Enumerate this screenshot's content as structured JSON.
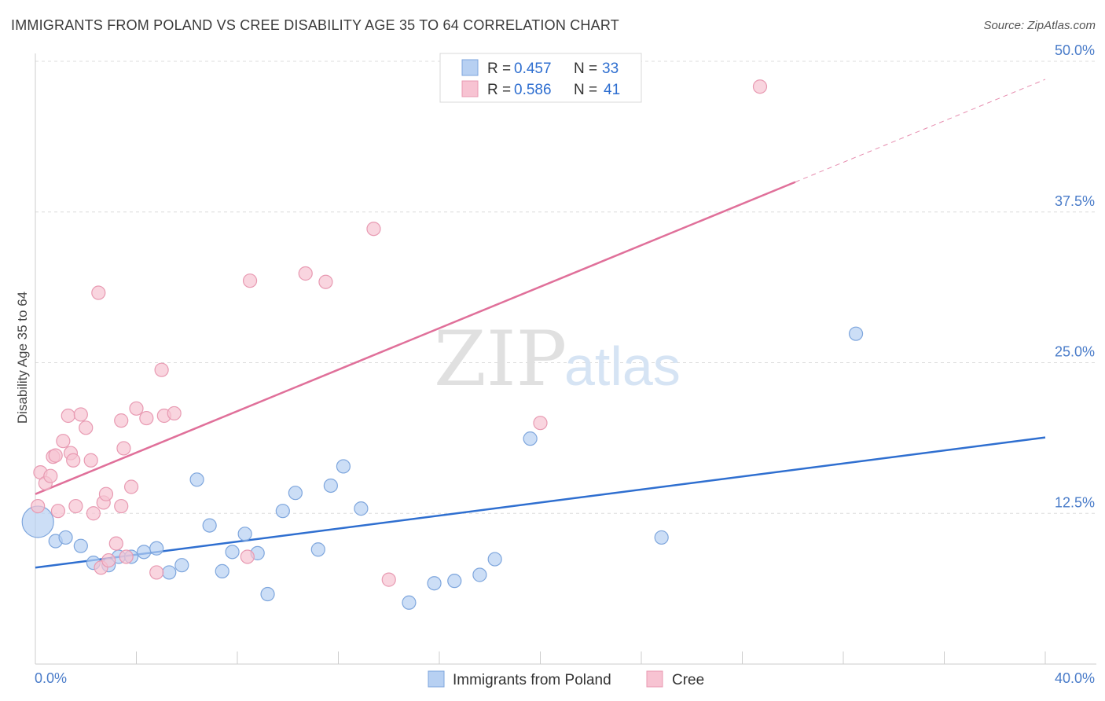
{
  "header": {
    "title": "IMMIGRANTS FROM POLAND VS CREE DISABILITY AGE 35 TO 64 CORRELATION CHART",
    "source": "Source: ZipAtlas.com"
  },
  "watermark": {
    "zip": "ZIP",
    "atlas": "atlas"
  },
  "colors": {
    "blue_fill": "#b7d0f2",
    "blue_stroke": "#7ea6dd",
    "blue_line": "#2f6fd0",
    "pink_fill": "#f7c3d2",
    "pink_stroke": "#e89ab2",
    "pink_line": "#e0709a",
    "grid": "#dcdcdc",
    "axis": "#cccccc"
  },
  "legend": {
    "entries": [
      {
        "r_label": "R = ",
        "r_value": "0.457",
        "n_label": "N = ",
        "n_value": "33"
      },
      {
        "r_label": "R = ",
        "r_value": "0.586",
        "n_label": "N = ",
        "n_value": "41"
      }
    ]
  },
  "chart_data": {
    "type": "scatter",
    "title": "IMMIGRANTS FROM POLAND VS CREE DISABILITY AGE 35 TO 64 CORRELATION CHART",
    "xlabel": "",
    "ylabel": "Disability Age 35 to 64",
    "xlim": [
      0,
      40
    ],
    "ylim": [
      0,
      50
    ],
    "x_tick_labels": [
      "0.0%",
      "40.0%"
    ],
    "y_ticks": [
      12.5,
      25.0,
      37.5,
      50.0
    ],
    "y_tick_labels": [
      "12.5%",
      "25.0%",
      "37.5%",
      "50.0%"
    ],
    "grid": true,
    "legend_position": "top-center",
    "series": [
      {
        "name": "Immigrants from Poland",
        "color": "#b7d0f2",
        "trend": {
          "x": [
            0,
            40
          ],
          "y": [
            8.0,
            18.8
          ],
          "solid_to": 40
        },
        "points": [
          {
            "x": 0.1,
            "y": 11.8,
            "big": true
          },
          {
            "x": 0.8,
            "y": 10.2
          },
          {
            "x": 1.2,
            "y": 10.5
          },
          {
            "x": 1.8,
            "y": 9.8
          },
          {
            "x": 2.3,
            "y": 8.4
          },
          {
            "x": 2.9,
            "y": 8.2
          },
          {
            "x": 3.3,
            "y": 8.9
          },
          {
            "x": 3.8,
            "y": 8.9
          },
          {
            "x": 4.3,
            "y": 9.3
          },
          {
            "x": 4.8,
            "y": 9.6
          },
          {
            "x": 5.3,
            "y": 7.6
          },
          {
            "x": 5.8,
            "y": 8.2
          },
          {
            "x": 6.4,
            "y": 15.3
          },
          {
            "x": 6.9,
            "y": 11.5
          },
          {
            "x": 7.4,
            "y": 7.7
          },
          {
            "x": 7.8,
            "y": 9.3
          },
          {
            "x": 8.3,
            "y": 10.8
          },
          {
            "x": 8.8,
            "y": 9.2
          },
          {
            "x": 9.2,
            "y": 5.8
          },
          {
            "x": 9.8,
            "y": 12.7
          },
          {
            "x": 10.3,
            "y": 14.2
          },
          {
            "x": 11.2,
            "y": 9.5
          },
          {
            "x": 11.7,
            "y": 14.8
          },
          {
            "x": 12.2,
            "y": 16.4
          },
          {
            "x": 12.9,
            "y": 12.9
          },
          {
            "x": 14.8,
            "y": 5.1
          },
          {
            "x": 15.8,
            "y": 6.7
          },
          {
            "x": 16.6,
            "y": 6.9
          },
          {
            "x": 17.6,
            "y": 7.4
          },
          {
            "x": 18.2,
            "y": 8.7
          },
          {
            "x": 19.6,
            "y": 18.7
          },
          {
            "x": 24.8,
            "y": 10.5
          },
          {
            "x": 32.5,
            "y": 27.4
          }
        ]
      },
      {
        "name": "Cree",
        "color": "#f7c3d2",
        "trend": {
          "x": [
            0,
            40
          ],
          "y": [
            14.1,
            48.5
          ],
          "solid_to": 30.1
        },
        "points": [
          {
            "x": 0.1,
            "y": 13.1
          },
          {
            "x": 0.2,
            "y": 15.9
          },
          {
            "x": 0.4,
            "y": 15.0
          },
          {
            "x": 0.6,
            "y": 15.6
          },
          {
            "x": 0.7,
            "y": 17.2
          },
          {
            "x": 0.8,
            "y": 17.3
          },
          {
            "x": 0.9,
            "y": 12.7
          },
          {
            "x": 1.1,
            "y": 18.5
          },
          {
            "x": 1.3,
            "y": 20.6
          },
          {
            "x": 1.4,
            "y": 17.5
          },
          {
            "x": 1.5,
            "y": 16.9
          },
          {
            "x": 1.6,
            "y": 13.1
          },
          {
            "x": 1.8,
            "y": 20.7
          },
          {
            "x": 2.0,
            "y": 19.6
          },
          {
            "x": 2.2,
            "y": 16.9
          },
          {
            "x": 2.3,
            "y": 12.5
          },
          {
            "x": 2.5,
            "y": 30.8
          },
          {
            "x": 2.6,
            "y": 8.0
          },
          {
            "x": 2.7,
            "y": 13.4
          },
          {
            "x": 2.8,
            "y": 14.1
          },
          {
            "x": 2.9,
            "y": 8.6
          },
          {
            "x": 3.2,
            "y": 10.0
          },
          {
            "x": 3.4,
            "y": 13.1
          },
          {
            "x": 3.4,
            "y": 20.2
          },
          {
            "x": 3.5,
            "y": 17.9
          },
          {
            "x": 3.6,
            "y": 8.9
          },
          {
            "x": 3.8,
            "y": 14.7
          },
          {
            "x": 4.0,
            "y": 21.2
          },
          {
            "x": 4.4,
            "y": 20.4
          },
          {
            "x": 4.8,
            "y": 7.6
          },
          {
            "x": 5.0,
            "y": 24.4
          },
          {
            "x": 5.1,
            "y": 20.6
          },
          {
            "x": 5.5,
            "y": 20.8
          },
          {
            "x": 8.4,
            "y": 8.9
          },
          {
            "x": 8.5,
            "y": 31.8
          },
          {
            "x": 10.7,
            "y": 32.4
          },
          {
            "x": 11.5,
            "y": 31.7
          },
          {
            "x": 13.4,
            "y": 36.1
          },
          {
            "x": 14.0,
            "y": 7.0
          },
          {
            "x": 20.0,
            "y": 20.0
          },
          {
            "x": 28.7,
            "y": 47.9
          }
        ]
      }
    ]
  }
}
